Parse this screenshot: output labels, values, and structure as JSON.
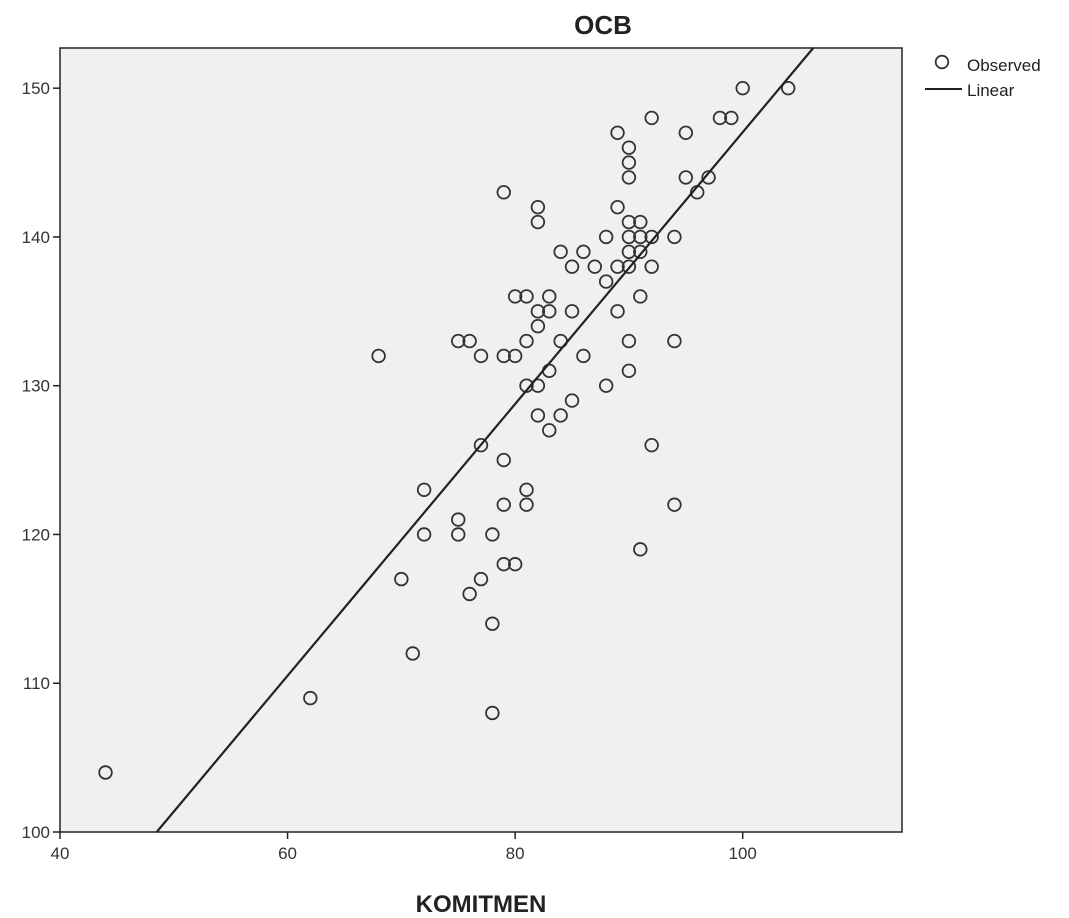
{
  "chart_data": {
    "type": "scatter",
    "title": "OCB",
    "xlabel": "KOMITMEN",
    "ylabel": "",
    "xlim": [
      40,
      114
    ],
    "ylim": [
      100,
      152.7
    ],
    "xticks": [
      40,
      60,
      80,
      100
    ],
    "yticks": [
      100,
      110,
      120,
      130,
      140,
      150
    ],
    "grid": false,
    "legend_position": "top-right outside",
    "legend": [
      "Observed",
      "Linear"
    ],
    "colors": {
      "plot_bg": "#f0f0f0",
      "marker": "#333333",
      "line": "#222222"
    },
    "series": [
      {
        "name": "Observed",
        "kind": "points",
        "points": [
          [
            44,
            104
          ],
          [
            62,
            109
          ],
          [
            68,
            132
          ],
          [
            70,
            117
          ],
          [
            71,
            112
          ],
          [
            72,
            123
          ],
          [
            72,
            120
          ],
          [
            75,
            133
          ],
          [
            75,
            121
          ],
          [
            75,
            120
          ],
          [
            76,
            133
          ],
          [
            76,
            116
          ],
          [
            77,
            132
          ],
          [
            77,
            126
          ],
          [
            77,
            117
          ],
          [
            78,
            120
          ],
          [
            78,
            114
          ],
          [
            78,
            108
          ],
          [
            79,
            143
          ],
          [
            79,
            132
          ],
          [
            79,
            125
          ],
          [
            79,
            122
          ],
          [
            79,
            118
          ],
          [
            80,
            136
          ],
          [
            80,
            132
          ],
          [
            80,
            118
          ],
          [
            81,
            136
          ],
          [
            81,
            133
          ],
          [
            81,
            130
          ],
          [
            81,
            123
          ],
          [
            81,
            122
          ],
          [
            82,
            142
          ],
          [
            82,
            141
          ],
          [
            82,
            135
          ],
          [
            82,
            134
          ],
          [
            82,
            130
          ],
          [
            82,
            128
          ],
          [
            83,
            136
          ],
          [
            83,
            135
          ],
          [
            83,
            131
          ],
          [
            83,
            127
          ],
          [
            84,
            139
          ],
          [
            84,
            133
          ],
          [
            84,
            128
          ],
          [
            85,
            138
          ],
          [
            85,
            135
          ],
          [
            85,
            129
          ],
          [
            86,
            139
          ],
          [
            86,
            132
          ],
          [
            87,
            138
          ],
          [
            88,
            140
          ],
          [
            88,
            137
          ],
          [
            88,
            130
          ],
          [
            89,
            147
          ],
          [
            89,
            142
          ],
          [
            89,
            138
          ],
          [
            89,
            135
          ],
          [
            90,
            146
          ],
          [
            90,
            145
          ],
          [
            90,
            144
          ],
          [
            90,
            141
          ],
          [
            90,
            140
          ],
          [
            90,
            139
          ],
          [
            90,
            138
          ],
          [
            90,
            133
          ],
          [
            90,
            131
          ],
          [
            91,
            141
          ],
          [
            91,
            140
          ],
          [
            91,
            139
          ],
          [
            91,
            136
          ],
          [
            91,
            119
          ],
          [
            92,
            148
          ],
          [
            92,
            140
          ],
          [
            92,
            138
          ],
          [
            92,
            126
          ],
          [
            94,
            140
          ],
          [
            94,
            133
          ],
          [
            94,
            122
          ],
          [
            95,
            147
          ],
          [
            95,
            144
          ],
          [
            96,
            143
          ],
          [
            97,
            144
          ],
          [
            98,
            148
          ],
          [
            99,
            148
          ],
          [
            100,
            150
          ],
          [
            104,
            150
          ]
        ]
      },
      {
        "name": "Linear",
        "kind": "line",
        "points": [
          [
            48.5,
            100
          ],
          [
            106.2,
            152.7
          ]
        ]
      }
    ]
  }
}
